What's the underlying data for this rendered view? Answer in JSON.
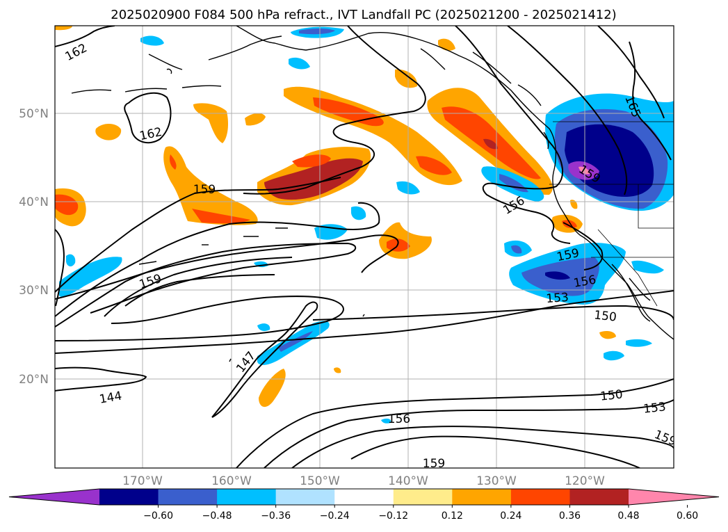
{
  "title": "2025020900 F084 500 hPa refract., IVT Landfall PC (2025021200 - 2025021412)",
  "map": {
    "lon_ticks": [
      "170°W",
      "160°W",
      "150°W",
      "140°W",
      "130°W",
      "120°W"
    ],
    "lat_ticks": [
      "50°N",
      "40°N",
      "30°N",
      "20°N"
    ],
    "contour_labels": [
      "162",
      "162",
      "159",
      "159",
      "159",
      "156",
      "165",
      "159",
      "156",
      "153",
      "150",
      "147",
      "144",
      "150",
      "153",
      "159",
      "156",
      "159"
    ],
    "colors": {
      "coastline": "#000000",
      "gridlines": "#b0b0b0",
      "tick_labels": "#808080"
    }
  },
  "colorbar": {
    "labels": [
      "−0.60",
      "−0.48",
      "−0.36",
      "−0.24",
      "−0.12",
      "0.12",
      "0.24",
      "0.36",
      "0.48",
      "0.60"
    ],
    "colors": [
      "#9932cc",
      "#00008b",
      "#3a5fcd",
      "#00bfff",
      "#b0e2ff",
      "#ffffff",
      "#ffec8b",
      "#ffa500",
      "#ff4500",
      "#b22222",
      "#ff86ac"
    ]
  }
}
